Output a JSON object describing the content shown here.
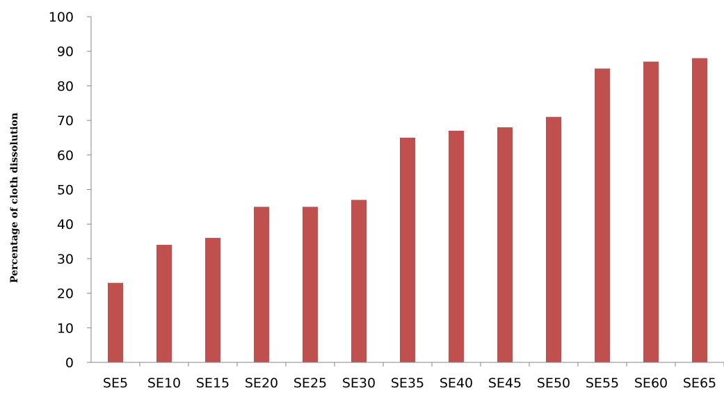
{
  "chart_data": {
    "type": "bar",
    "title": "",
    "xlabel": "",
    "ylabel": "Percentage of cloth dissolution",
    "categories": [
      "SE5",
      "SE10",
      "SE15",
      "SE20",
      "SE25",
      "SE30",
      "SE35",
      "SE40",
      "SE45",
      "SE50",
      "SE55",
      "SE60",
      "SE65"
    ],
    "values": [
      23,
      34,
      36,
      45,
      45,
      47,
      65,
      67,
      68,
      71,
      85,
      87,
      88
    ],
    "ylim": [
      0,
      100
    ],
    "yticks": [
      0,
      10,
      20,
      30,
      40,
      50,
      60,
      70,
      80,
      90,
      100
    ],
    "bar_color": "#C0504D",
    "grid": false,
    "legend": "none"
  }
}
